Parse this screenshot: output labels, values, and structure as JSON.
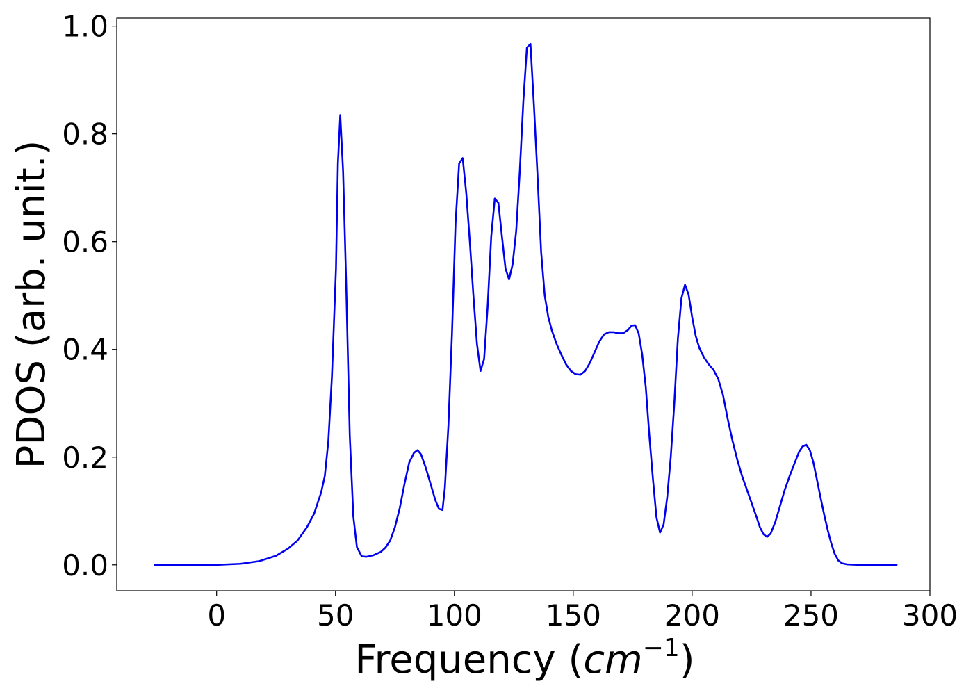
{
  "chart_data": {
    "type": "line",
    "title": "",
    "xlabel": {
      "text": "Frequency (",
      "unit_base": "cm",
      "unit_exponent": "−1",
      "suffix": ")"
    },
    "ylabel": "PDOS (arb. unit.)",
    "xlim": [
      -42,
      300
    ],
    "ylim": [
      -0.048,
      1.015
    ],
    "xticks": [
      0,
      50,
      100,
      150,
      200,
      250,
      300
    ],
    "xtick_labels": [
      "0",
      "50",
      "100",
      "150",
      "200",
      "250",
      "300"
    ],
    "yticks": [
      0.0,
      0.2,
      0.4,
      0.6,
      0.8,
      1.0
    ],
    "ytick_labels": [
      "0.0",
      "0.2",
      "0.4",
      "0.6",
      "0.8",
      "1.0"
    ],
    "grid": false,
    "colors": {
      "line": "#0000ee",
      "axes": "#000000",
      "background": "#ffffff"
    },
    "series": [
      {
        "points": [
          [
            -26,
            0.0
          ],
          [
            0,
            0.0
          ],
          [
            10,
            0.002
          ],
          [
            18,
            0.007
          ],
          [
            25,
            0.017
          ],
          [
            30,
            0.03
          ],
          [
            34,
            0.045
          ],
          [
            38,
            0.07
          ],
          [
            41,
            0.095
          ],
          [
            44,
            0.135
          ],
          [
            45.5,
            0.165
          ],
          [
            47,
            0.23
          ],
          [
            48.5,
            0.35
          ],
          [
            50.2,
            0.55
          ],
          [
            51,
            0.745
          ],
          [
            52,
            0.835
          ],
          [
            53.2,
            0.73
          ],
          [
            54.5,
            0.52
          ],
          [
            56,
            0.24
          ],
          [
            57.5,
            0.09
          ],
          [
            59,
            0.033
          ],
          [
            61,
            0.016
          ],
          [
            63,
            0.015
          ],
          [
            66,
            0.018
          ],
          [
            69,
            0.024
          ],
          [
            71,
            0.032
          ],
          [
            73,
            0.045
          ],
          [
            75,
            0.07
          ],
          [
            77,
            0.105
          ],
          [
            79,
            0.15
          ],
          [
            81,
            0.19
          ],
          [
            83,
            0.208
          ],
          [
            84.5,
            0.213
          ],
          [
            86,
            0.205
          ],
          [
            88,
            0.18
          ],
          [
            90,
            0.15
          ],
          [
            92,
            0.12
          ],
          [
            93.5,
            0.104
          ],
          [
            95,
            0.102
          ],
          [
            96,
            0.143
          ],
          [
            97.5,
            0.26
          ],
          [
            99,
            0.43
          ],
          [
            100.5,
            0.635
          ],
          [
            102,
            0.745
          ],
          [
            103.5,
            0.755
          ],
          [
            105,
            0.69
          ],
          [
            106.5,
            0.6
          ],
          [
            108,
            0.5
          ],
          [
            109.5,
            0.41
          ],
          [
            111,
            0.36
          ],
          [
            112.5,
            0.382
          ],
          [
            114,
            0.48
          ],
          [
            115.5,
            0.61
          ],
          [
            117,
            0.68
          ],
          [
            118.5,
            0.672
          ],
          [
            120,
            0.61
          ],
          [
            121.5,
            0.55
          ],
          [
            123,
            0.53
          ],
          [
            124.5,
            0.558
          ],
          [
            126,
            0.62
          ],
          [
            127.5,
            0.73
          ],
          [
            129,
            0.86
          ],
          [
            130.5,
            0.96
          ],
          [
            132,
            0.967
          ],
          [
            133.5,
            0.85
          ],
          [
            135,
            0.72
          ],
          [
            136.5,
            0.58
          ],
          [
            138,
            0.5
          ],
          [
            139.5,
            0.46
          ],
          [
            141,
            0.435
          ],
          [
            143,
            0.41
          ],
          [
            145,
            0.39
          ],
          [
            147,
            0.372
          ],
          [
            149,
            0.36
          ],
          [
            151,
            0.354
          ],
          [
            153,
            0.353
          ],
          [
            155,
            0.36
          ],
          [
            157,
            0.375
          ],
          [
            159,
            0.395
          ],
          [
            161,
            0.415
          ],
          [
            163,
            0.428
          ],
          [
            165,
            0.432
          ],
          [
            167,
            0.432
          ],
          [
            169,
            0.43
          ],
          [
            171,
            0.43
          ],
          [
            173,
            0.436
          ],
          [
            174.5,
            0.444
          ],
          [
            176,
            0.445
          ],
          [
            177.5,
            0.43
          ],
          [
            179,
            0.39
          ],
          [
            180.5,
            0.33
          ],
          [
            182,
            0.24
          ],
          [
            183.5,
            0.16
          ],
          [
            185,
            0.088
          ],
          [
            186.5,
            0.06
          ],
          [
            188,
            0.075
          ],
          [
            189.5,
            0.125
          ],
          [
            191,
            0.2
          ],
          [
            192.5,
            0.3
          ],
          [
            194,
            0.42
          ],
          [
            195.5,
            0.495
          ],
          [
            197,
            0.52
          ],
          [
            198.5,
            0.502
          ],
          [
            200,
            0.46
          ],
          [
            201.5,
            0.425
          ],
          [
            203,
            0.403
          ],
          [
            205,
            0.385
          ],
          [
            207,
            0.372
          ],
          [
            209,
            0.362
          ],
          [
            211,
            0.345
          ],
          [
            213,
            0.315
          ],
          [
            215,
            0.27
          ],
          [
            217,
            0.23
          ],
          [
            219,
            0.195
          ],
          [
            221,
            0.165
          ],
          [
            223,
            0.14
          ],
          [
            225,
            0.115
          ],
          [
            227,
            0.09
          ],
          [
            228.5,
            0.07
          ],
          [
            230,
            0.057
          ],
          [
            231.5,
            0.052
          ],
          [
            233,
            0.058
          ],
          [
            235,
            0.08
          ],
          [
            237,
            0.11
          ],
          [
            239,
            0.14
          ],
          [
            241,
            0.165
          ],
          [
            243,
            0.188
          ],
          [
            245,
            0.21
          ],
          [
            246.5,
            0.22
          ],
          [
            248,
            0.223
          ],
          [
            249.5,
            0.213
          ],
          [
            251,
            0.19
          ],
          [
            252.5,
            0.158
          ],
          [
            254,
            0.125
          ],
          [
            255.5,
            0.094
          ],
          [
            257,
            0.065
          ],
          [
            258.5,
            0.04
          ],
          [
            260,
            0.02
          ],
          [
            261.5,
            0.008
          ],
          [
            263,
            0.003
          ],
          [
            265,
            0.001
          ],
          [
            270,
            0.0
          ],
          [
            286,
            0.0
          ]
        ]
      }
    ]
  }
}
